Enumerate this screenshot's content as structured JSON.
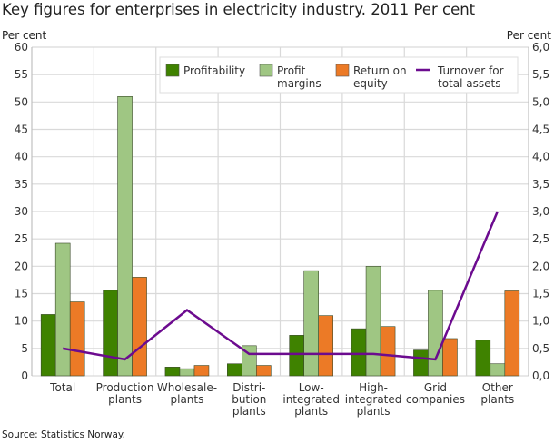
{
  "chart_data": {
    "type": "bar",
    "title": "Key figures for enterprises in electricity industry. 2011 Per cent",
    "ylabel": "Per cent",
    "y2label": "Per cent",
    "ylim": [
      0,
      60
    ],
    "y2lim": [
      0,
      6
    ],
    "yticks": [
      "0",
      "5",
      "10",
      "15",
      "20",
      "25",
      "30",
      "35",
      "40",
      "45",
      "50",
      "55",
      "60"
    ],
    "y2ticks": [
      "0,0",
      "0,5",
      "1,0",
      "1,5",
      "2,0",
      "2,5",
      "3,0",
      "3,5",
      "4,0",
      "4,5",
      "5,0",
      "5,5",
      "6,0"
    ],
    "grid": true,
    "legend_position": "top-right",
    "categories": [
      [
        "Total"
      ],
      [
        "Production",
        "plants"
      ],
      [
        "Wholesale-",
        "plants"
      ],
      [
        "Distri-",
        "bution",
        "plants"
      ],
      [
        "Low-",
        "integrated",
        "plants"
      ],
      [
        "High-",
        "integrated",
        "plants"
      ],
      [
        "Grid",
        "companies"
      ],
      [
        "Other",
        "plants"
      ]
    ],
    "series": [
      {
        "name": "Profitability",
        "type": "bar",
        "axis": "left",
        "color": "#3f8200",
        "values": [
          11.2,
          15.6,
          1.6,
          2.2,
          7.4,
          8.6,
          4.7,
          6.5
        ]
      },
      {
        "name": "Profit margins",
        "type": "bar",
        "axis": "left",
        "color": "#9fc683",
        "values": [
          24.2,
          51.0,
          1.3,
          5.5,
          19.2,
          20.0,
          15.6,
          2.2
        ]
      },
      {
        "name": "Return on equity",
        "type": "bar",
        "axis": "left",
        "color": "#ec7a26",
        "values": [
          13.5,
          18.0,
          1.9,
          1.9,
          11.0,
          9.0,
          6.8,
          15.5
        ]
      },
      {
        "name": "Turnover for total assets",
        "type": "line",
        "axis": "right",
        "color": "#6c0b8f",
        "values": [
          0.5,
          0.3,
          1.2,
          0.4,
          0.4,
          0.4,
          0.3,
          3.0
        ]
      }
    ],
    "legend_lines": [
      [
        "Profitability"
      ],
      [
        "Profit",
        "margins"
      ],
      [
        "Return on",
        "equity"
      ],
      [
        "Turnover for",
        "total assets"
      ]
    ]
  },
  "source": "Source: Statistics Norway."
}
